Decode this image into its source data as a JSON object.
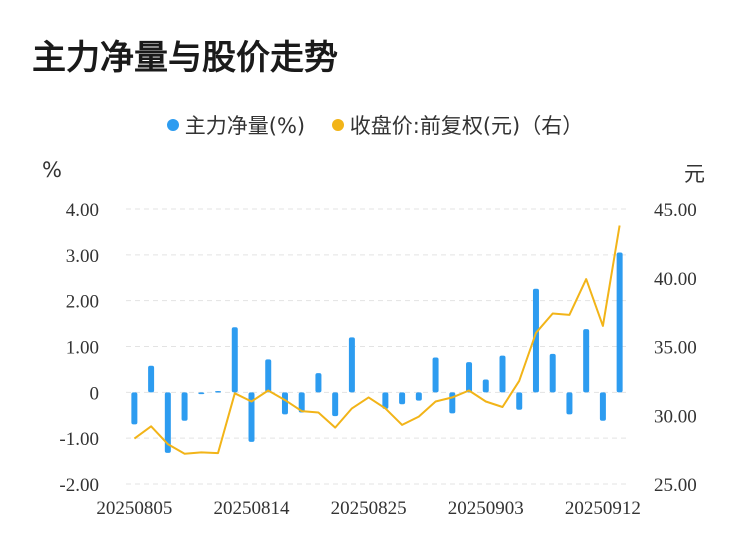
{
  "title": "主力净量与股价走势",
  "colors": {
    "bar": "#2d9cf0",
    "line": "#f2b418",
    "grid": "#e3e3e3",
    "text": "#333333"
  },
  "chart_data": {
    "type": "bar+line",
    "title": "主力净量与股价走势",
    "legend": [
      {
        "label": "主力净量(%)",
        "color": "#2d9cf0"
      },
      {
        "label": "收盘价:前复权(元)（右）",
        "color": "#f2b418"
      }
    ],
    "left_unit": "%",
    "right_unit": "元",
    "left_ticks": [
      "4.00",
      "3.00",
      "2.00",
      "1.00",
      "0",
      "-1.00",
      "-2.00"
    ],
    "right_ticks": [
      "45.00",
      "40.00",
      "35.00",
      "30.00",
      "25.00"
    ],
    "ylim_left": [
      -2,
      4
    ],
    "ylim_right": [
      25,
      45
    ],
    "x_tick_labels": [
      "20250805",
      "20250814",
      "20250825",
      "20250903",
      "20250912"
    ],
    "x_tick_indices": [
      0,
      7,
      14,
      21,
      28
    ],
    "series": [
      {
        "name": "主力净量(%)",
        "type": "bar",
        "values": [
          -0.7,
          0.58,
          -1.32,
          -0.62,
          -0.04,
          0.03,
          1.42,
          -1.08,
          0.72,
          -0.48,
          -0.44,
          0.42,
          -0.52,
          1.2,
          0.0,
          -0.36,
          -0.26,
          -0.18,
          0.76,
          -0.46,
          0.66,
          0.28,
          0.8,
          -0.38,
          2.26,
          0.84,
          -0.48,
          1.38,
          -0.62,
          3.05
        ]
      },
      {
        "name": "收盘价:前复权(元)（右）",
        "type": "line",
        "values": [
          28.3,
          29.2,
          27.9,
          27.2,
          27.3,
          27.25,
          31.6,
          31.0,
          31.8,
          31.1,
          30.3,
          30.2,
          29.1,
          30.5,
          31.3,
          30.5,
          29.3,
          29.9,
          31.0,
          31.3,
          31.8,
          31.0,
          30.6,
          32.5,
          36.0,
          37.4,
          37.3,
          39.9,
          36.5,
          43.8
        ]
      }
    ]
  }
}
